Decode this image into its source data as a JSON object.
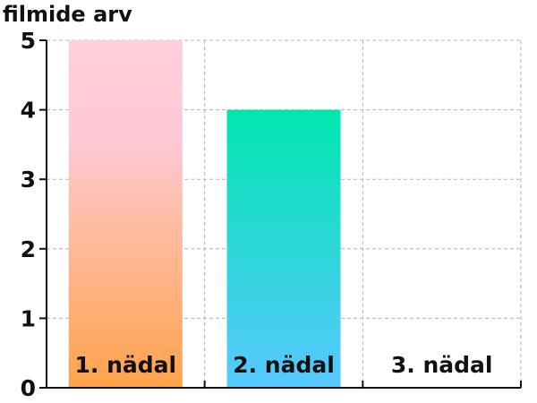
{
  "chart_data": {
    "type": "bar",
    "title": "",
    "ylabel": "filmide arv",
    "xlabel": "",
    "categories": [
      "1. nädal",
      "2. nädal",
      "3. nädal"
    ],
    "values": [
      5,
      4,
      0
    ],
    "ylim": [
      0,
      5
    ],
    "yticks": [
      "0",
      "1",
      "2",
      "3",
      "4",
      "5"
    ],
    "grid": true,
    "bar_gradients": [
      {
        "top": "#ffcfdc",
        "mid": "#ffc9d5",
        "bottom": "#ffa24a"
      },
      {
        "top": "#00e6b0",
        "bottom": "#58c8ff"
      },
      {
        "top": "#ffffff",
        "bottom": "#ffffff"
      }
    ],
    "grid_color": "#b5b5b5",
    "axis_color": "#111111"
  }
}
